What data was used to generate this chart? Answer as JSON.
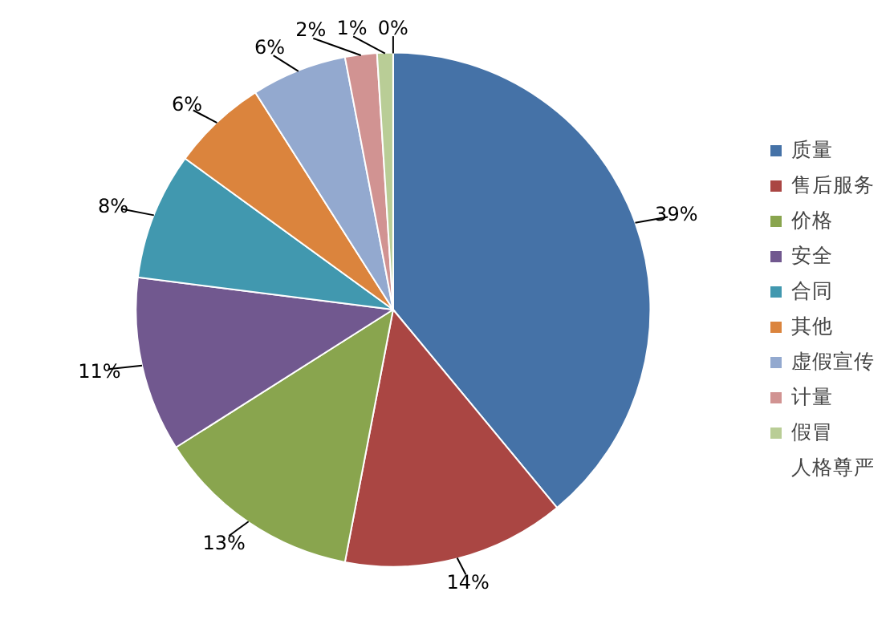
{
  "chart_data": {
    "type": "pie",
    "categories": [
      "质量",
      "售后服务",
      "价格",
      "安全",
      "合同",
      "其他",
      "虚假宣传",
      "计量",
      "假冒",
      "人格尊严"
    ],
    "values": [
      39,
      14,
      13,
      11,
      8,
      6,
      6,
      2,
      1,
      0
    ],
    "value_labels": [
      "39%",
      "14%",
      "13%",
      "11%",
      "8%",
      "6%",
      "6%",
      "2%",
      "1%",
      "0%"
    ],
    "colors": [
      "#4572a7",
      "#aa4643",
      "#89a54e",
      "#71588f",
      "#4198af",
      "#db843d",
      "#93a9cf",
      "#d19392",
      "#b9cd96",
      "#a99bbd"
    ],
    "legend": "right"
  }
}
